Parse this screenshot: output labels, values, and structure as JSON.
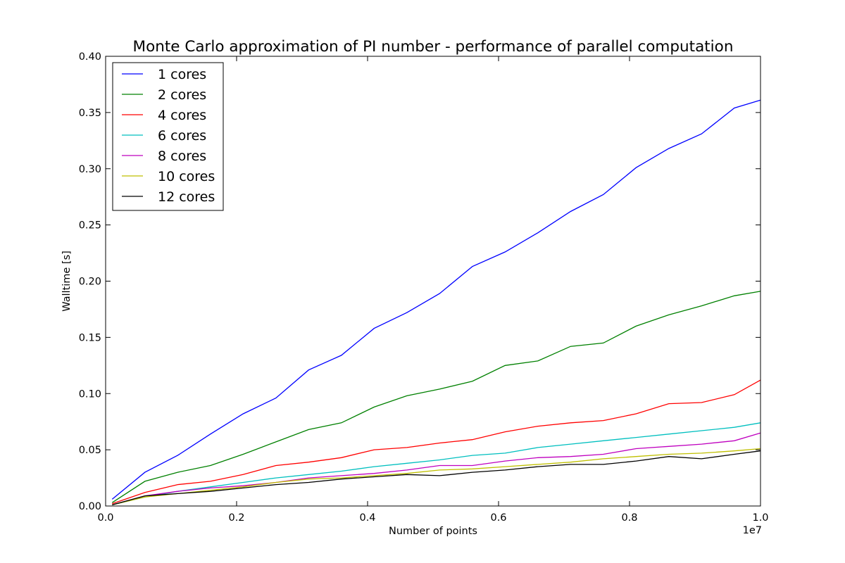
{
  "chart_data": {
    "type": "line",
    "title": "Monte Carlo approximation of PI number - performance of parallel computation",
    "xlabel": "Number of points",
    "ylabel": "Walltime [s]",
    "x_offset_label": "1e7",
    "xlim": [
      0.0,
      1.0
    ],
    "ylim": [
      0.0,
      0.4
    ],
    "x_scale_exponent": 7,
    "xticks": [
      0.0,
      0.2,
      0.4,
      0.6,
      0.8,
      1.0
    ],
    "xtick_labels": [
      "0.0",
      "0.2",
      "0.4",
      "0.6",
      "0.8",
      "1.0"
    ],
    "yticks": [
      0.0,
      0.05,
      0.1,
      0.15,
      0.2,
      0.25,
      0.3,
      0.35,
      0.4
    ],
    "ytick_labels": [
      "0.00",
      "0.05",
      "0.10",
      "0.15",
      "0.20",
      "0.25",
      "0.30",
      "0.35",
      "0.40"
    ],
    "grid": false,
    "legend_position": "top-left",
    "x": [
      0.01,
      0.06,
      0.11,
      0.16,
      0.21,
      0.26,
      0.31,
      0.36,
      0.41,
      0.46,
      0.51,
      0.56,
      0.61,
      0.66,
      0.71,
      0.76,
      0.81,
      0.86,
      0.91,
      0.96,
      1.0
    ],
    "series": [
      {
        "name": "1 cores",
        "color": "#0000ff",
        "values": [
          0.006,
          0.03,
          0.045,
          0.064,
          0.082,
          0.096,
          0.121,
          0.134,
          0.158,
          0.172,
          0.189,
          0.213,
          0.226,
          0.243,
          0.262,
          0.277,
          0.301,
          0.318,
          0.331,
          0.354,
          0.361
        ]
      },
      {
        "name": "2 cores",
        "color": "#008000",
        "values": [
          0.003,
          0.022,
          0.03,
          0.036,
          0.046,
          0.057,
          0.068,
          0.074,
          0.088,
          0.098,
          0.104,
          0.111,
          0.125,
          0.129,
          0.142,
          0.145,
          0.16,
          0.17,
          0.178,
          0.187,
          0.191
        ]
      },
      {
        "name": "4 cores",
        "color": "#ff0000",
        "values": [
          0.002,
          0.012,
          0.019,
          0.022,
          0.028,
          0.036,
          0.039,
          0.043,
          0.05,
          0.052,
          0.056,
          0.059,
          0.066,
          0.071,
          0.074,
          0.076,
          0.082,
          0.091,
          0.092,
          0.099,
          0.112
        ]
      },
      {
        "name": "6 cores",
        "color": "#00bfbf",
        "values": [
          0.001,
          0.008,
          0.013,
          0.017,
          0.021,
          0.025,
          0.028,
          0.031,
          0.035,
          0.038,
          0.041,
          0.045,
          0.047,
          0.052,
          0.055,
          0.058,
          0.061,
          0.064,
          0.067,
          0.07,
          0.074
        ]
      },
      {
        "name": "8 cores",
        "color": "#bf00bf",
        "values": [
          0.001,
          0.009,
          0.013,
          0.016,
          0.018,
          0.021,
          0.025,
          0.027,
          0.029,
          0.032,
          0.036,
          0.036,
          0.04,
          0.043,
          0.044,
          0.046,
          0.051,
          0.053,
          0.055,
          0.058,
          0.065
        ]
      },
      {
        "name": "10 cores",
        "color": "#bfbf00",
        "values": [
          0.001,
          0.008,
          0.011,
          0.014,
          0.017,
          0.021,
          0.024,
          0.025,
          0.027,
          0.029,
          0.032,
          0.033,
          0.035,
          0.037,
          0.039,
          0.042,
          0.044,
          0.046,
          0.047,
          0.049,
          0.051
        ]
      },
      {
        "name": "12 cores",
        "color": "#000000",
        "values": [
          0.001,
          0.009,
          0.011,
          0.013,
          0.016,
          0.019,
          0.021,
          0.024,
          0.026,
          0.028,
          0.027,
          0.03,
          0.032,
          0.035,
          0.037,
          0.037,
          0.04,
          0.044,
          0.042,
          0.046,
          0.049
        ]
      }
    ]
  }
}
